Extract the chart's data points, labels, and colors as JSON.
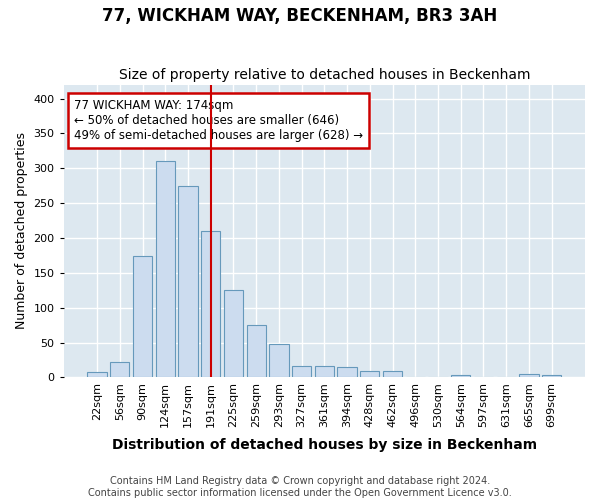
{
  "title": "77, WICKHAM WAY, BECKENHAM, BR3 3AH",
  "subtitle": "Size of property relative to detached houses in Beckenham",
  "xlabel": "Distribution of detached houses by size in Beckenham",
  "ylabel": "Number of detached properties",
  "categories": [
    "22sqm",
    "56sqm",
    "90sqm",
    "124sqm",
    "157sqm",
    "191sqm",
    "225sqm",
    "259sqm",
    "293sqm",
    "327sqm",
    "361sqm",
    "394sqm",
    "428sqm",
    "462sqm",
    "496sqm",
    "530sqm",
    "564sqm",
    "597sqm",
    "631sqm",
    "665sqm",
    "699sqm"
  ],
  "values": [
    8,
    22,
    174,
    310,
    275,
    210,
    125,
    75,
    48,
    16,
    16,
    15,
    9,
    9,
    0,
    0,
    3,
    0,
    0,
    5,
    4
  ],
  "bar_color": "#ccdcef",
  "bar_edge_color": "#6699bb",
  "property_line_x": 5.0,
  "annotation_text": "77 WICKHAM WAY: 174sqm\n← 50% of detached houses are smaller (646)\n49% of semi-detached houses are larger (628) →",
  "annotation_box_color": "#ffffff",
  "annotation_box_edge_color": "#cc0000",
  "ylim": [
    0,
    420
  ],
  "background_color": "#dde8f0",
  "plot_bg_color": "#dde8f0",
  "fig_bg_color": "#ffffff",
  "grid_color": "#ffffff",
  "footer_line1": "Contains HM Land Registry data © Crown copyright and database right 2024.",
  "footer_line2": "Contains public sector information licensed under the Open Government Licence v3.0.",
  "title_fontsize": 12,
  "subtitle_fontsize": 10,
  "xlabel_fontsize": 10,
  "ylabel_fontsize": 9,
  "tick_fontsize": 8,
  "footer_fontsize": 7,
  "property_line_color": "#cc0000",
  "annotation_fontsize": 8.5
}
